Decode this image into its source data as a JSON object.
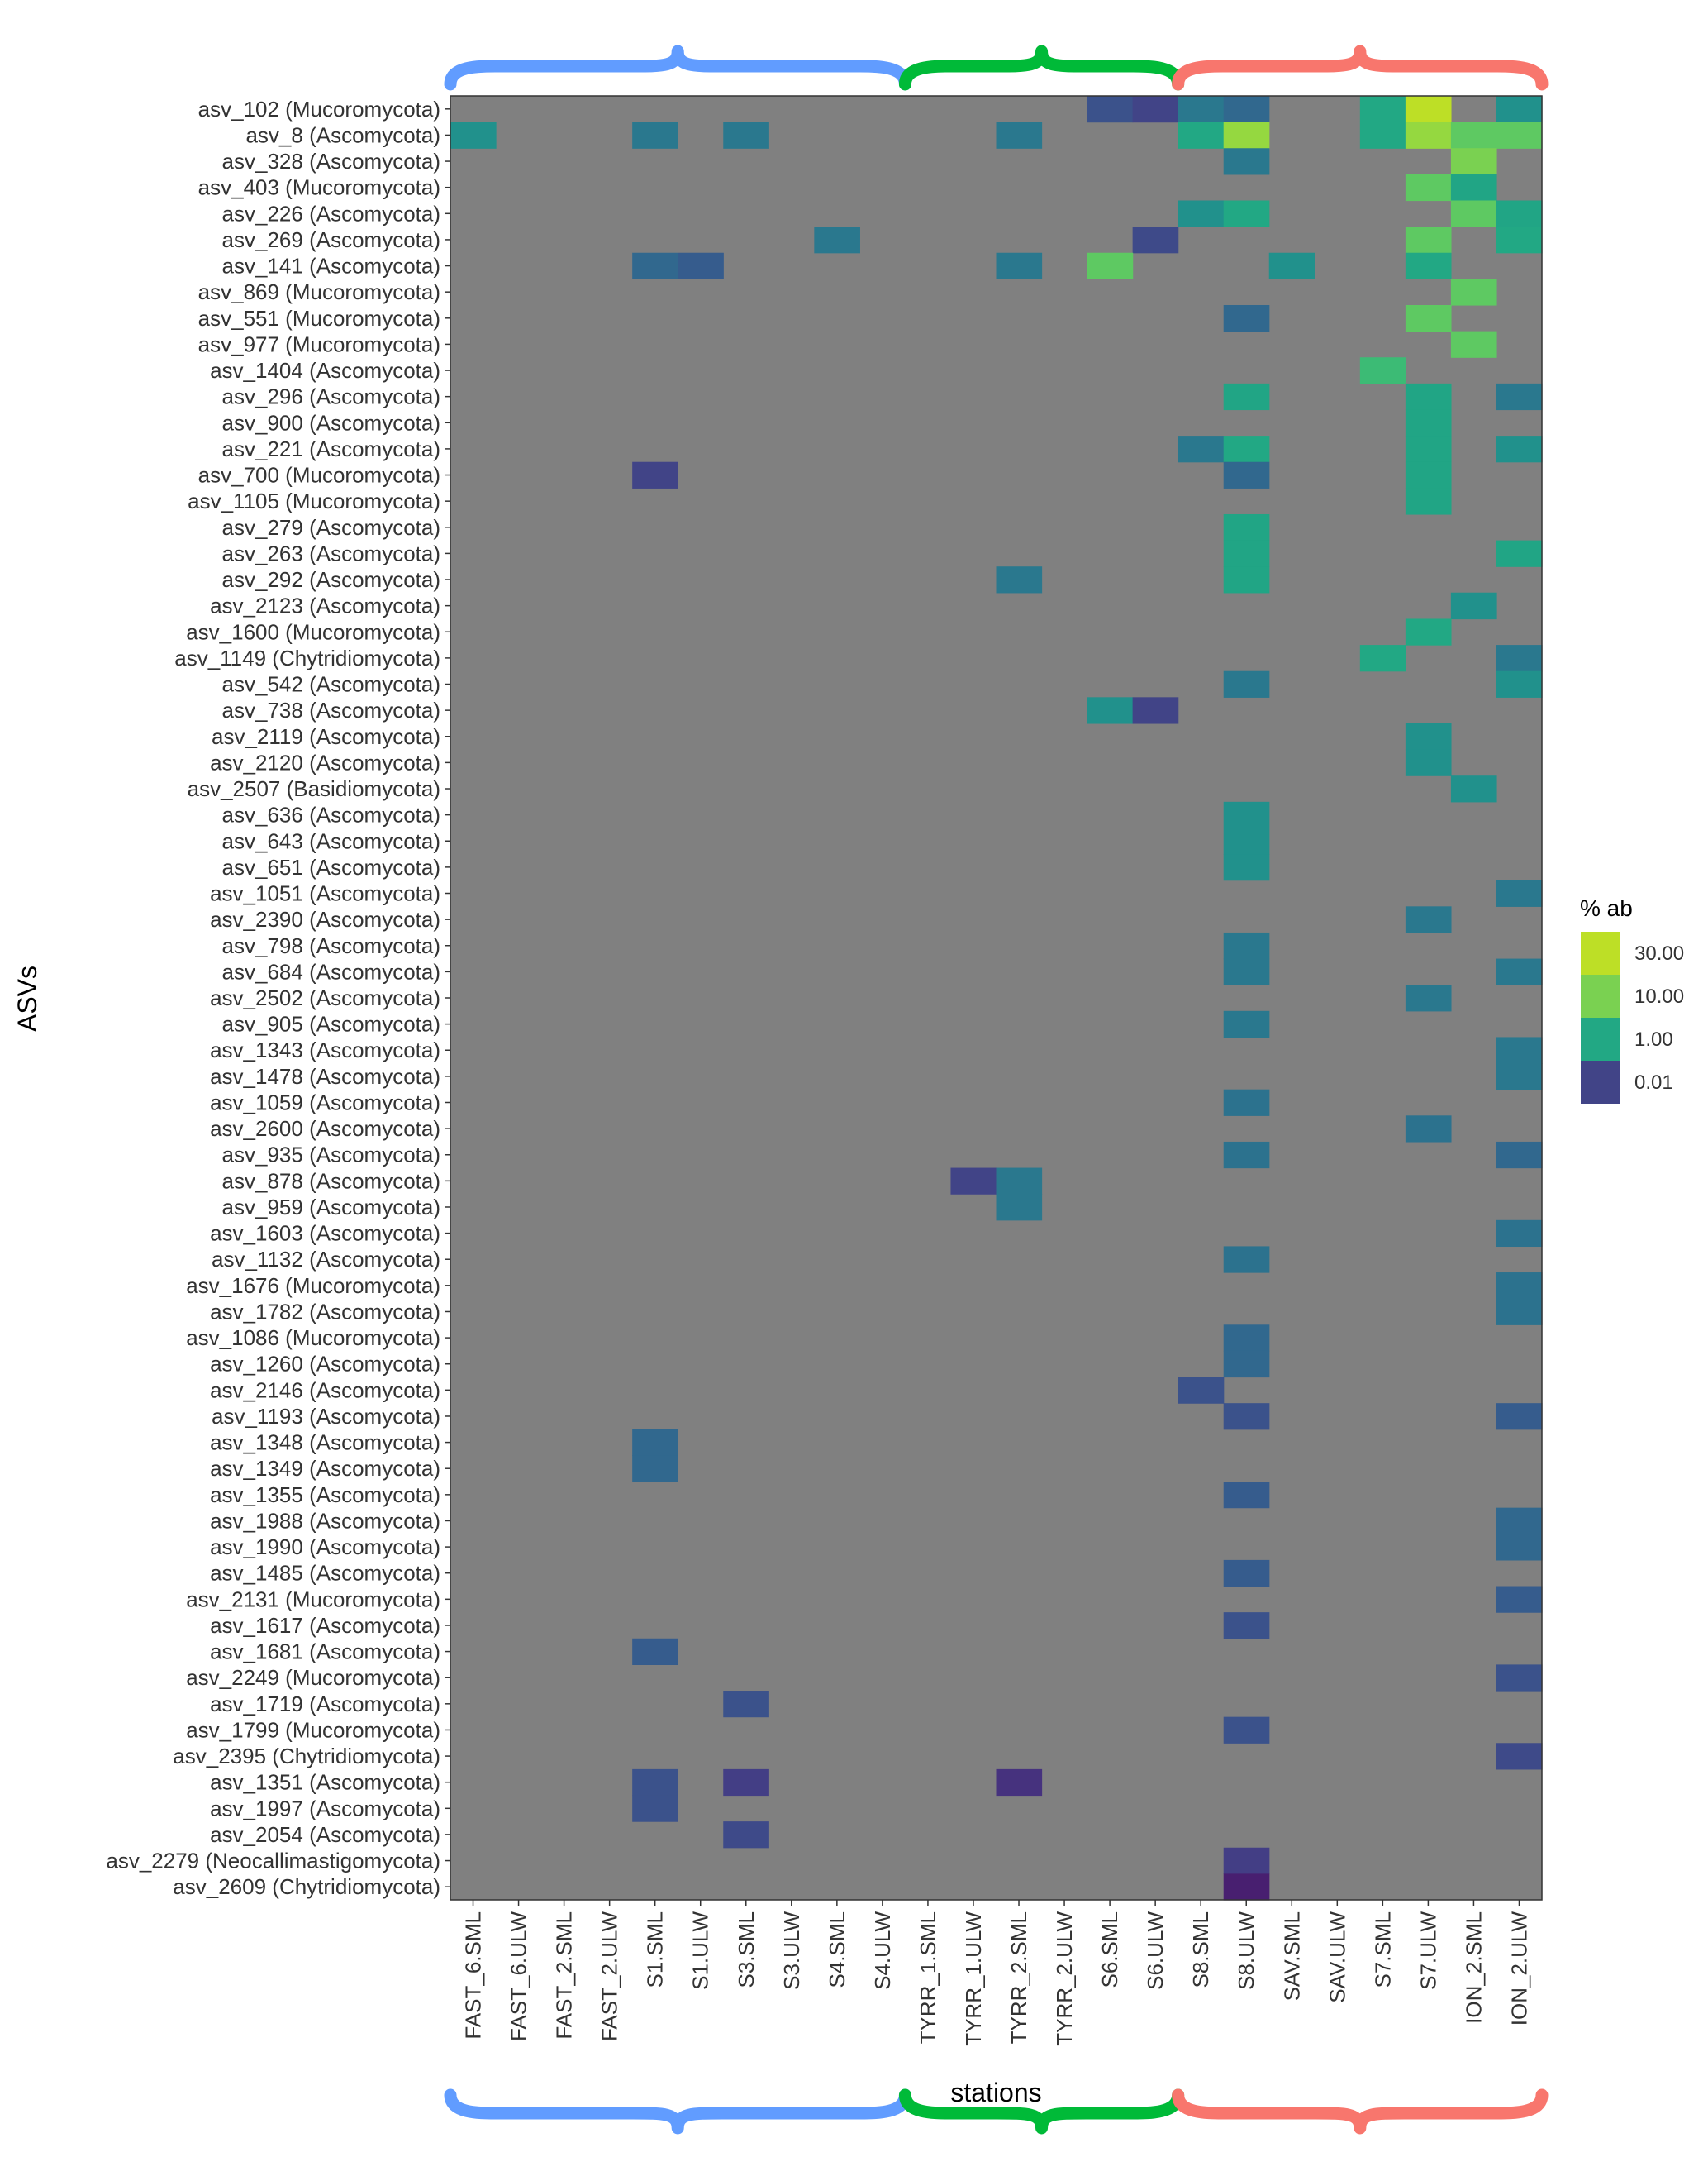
{
  "chart_data": {
    "type": "heatmap",
    "title": "",
    "xlabel": "stations",
    "ylabel": "ASVs",
    "x_categories": [
      "FAST_6.SML",
      "FAST_6.ULW",
      "FAST_2.SML",
      "FAST_2.ULW",
      "S1.SML",
      "S1.ULW",
      "S3.SML",
      "S3.ULW",
      "S4.SML",
      "S4.ULW",
      "TYRR_1.SML",
      "TYRR_1.ULW",
      "TYRR_2.SML",
      "TYRR_2.ULW",
      "S6.SML",
      "S6.ULW",
      "S8.SML",
      "S8.ULW",
      "SAV.SML",
      "SAV.ULW",
      "S7.SML",
      "S7.ULW",
      "ION_2.SML",
      "ION_2.ULW"
    ],
    "y_categories": [
      "asv_102 (Mucoromycota)",
      "asv_8 (Ascomycota)",
      "asv_328 (Ascomycota)",
      "asv_403 (Mucoromycota)",
      "asv_226 (Ascomycota)",
      "asv_269 (Ascomycota)",
      "asv_141 (Ascomycota)",
      "asv_869 (Mucoromycota)",
      "asv_551 (Mucoromycota)",
      "asv_977 (Mucoromycota)",
      "asv_1404 (Ascomycota)",
      "asv_296 (Ascomycota)",
      "asv_900 (Ascomycota)",
      "asv_221 (Ascomycota)",
      "asv_700 (Mucoromycota)",
      "asv_1105 (Mucoromycota)",
      "asv_279 (Ascomycota)",
      "asv_263 (Ascomycota)",
      "asv_292 (Ascomycota)",
      "asv_2123 (Ascomycota)",
      "asv_1600 (Mucoromycota)",
      "asv_1149 (Chytridiomycota)",
      "asv_542 (Ascomycota)",
      "asv_738 (Ascomycota)",
      "asv_2119 (Ascomycota)",
      "asv_2120 (Ascomycota)",
      "asv_2507 (Basidiomycota)",
      "asv_636 (Ascomycota)",
      "asv_643 (Ascomycota)",
      "asv_651 (Ascomycota)",
      "asv_1051 (Ascomycota)",
      "asv_2390 (Ascomycota)",
      "asv_798 (Ascomycota)",
      "asv_684 (Ascomycota)",
      "asv_2502 (Ascomycota)",
      "asv_905 (Ascomycota)",
      "asv_1343 (Ascomycota)",
      "asv_1478 (Ascomycota)",
      "asv_1059 (Ascomycota)",
      "asv_2600 (Ascomycota)",
      "asv_935 (Ascomycota)",
      "asv_878 (Ascomycota)",
      "asv_959 (Ascomycota)",
      "asv_1603 (Ascomycota)",
      "asv_1132 (Ascomycota)",
      "asv_1676 (Mucoromycota)",
      "asv_1782 (Ascomycota)",
      "asv_1086 (Mucoromycota)",
      "asv_1260 (Ascomycota)",
      "asv_2146 (Ascomycota)",
      "asv_1193 (Ascomycota)",
      "asv_1348 (Ascomycota)",
      "asv_1349 (Ascomycota)",
      "asv_1355 (Ascomycota)",
      "asv_1988 (Ascomycota)",
      "asv_1990 (Ascomycota)",
      "asv_1485 (Ascomycota)",
      "asv_2131 (Mucoromycota)",
      "asv_1617 (Ascomycota)",
      "asv_1681 (Ascomycota)",
      "asv_2249 (Mucoromycota)",
      "asv_1719 (Ascomycota)",
      "asv_1799 (Mucoromycota)",
      "asv_2395 (Chytridiomycota)",
      "asv_1351 (Ascomycota)",
      "asv_1997 (Ascomycota)",
      "asv_2054 (Ascomycota)",
      "asv_2279 (Neocallimastigomycota)",
      "asv_2609 (Chytridiomycota)"
    ],
    "background_color": "#808080",
    "legend": {
      "title": "% ab",
      "position": "right",
      "labels": [
        "30.00",
        "10.00",
        "1.00",
        "0.01"
      ],
      "colors": [
        "#bddf26",
        "#7ad151",
        "#22a884",
        "#414487"
      ]
    },
    "brackets": {
      "top": [
        {
          "from": "FAST_6.SML",
          "to": "S4.ULW",
          "color": "#619cff"
        },
        {
          "from": "TYRR_1.SML",
          "to": "S6.ULW",
          "color": "#00ba38"
        },
        {
          "from": "S8.SML",
          "to": "ION_2.ULW",
          "color": "#f8766d"
        }
      ],
      "bottom": [
        {
          "from": "FAST_6.SML",
          "to": "S4.ULW",
          "color": "#619cff"
        },
        {
          "from": "TYRR_1.SML",
          "to": "S6.ULW",
          "color": "#00ba38"
        },
        {
          "from": "S8.SML",
          "to": "ION_2.ULW",
          "color": "#f8766d"
        }
      ]
    },
    "cells": [
      {
        "x": "S6.SML",
        "y": "asv_102 (Mucoromycota)",
        "value": 0.03,
        "color": "#3b528b"
      },
      {
        "x": "S6.ULW",
        "y": "asv_102 (Mucoromycota)",
        "value": 0.01,
        "color": "#414487"
      },
      {
        "x": "S8.SML",
        "y": "asv_102 (Mucoromycota)",
        "value": 0.5,
        "color": "#2a788e"
      },
      {
        "x": "S8.ULW",
        "y": "asv_102 (Mucoromycota)",
        "value": 0.1,
        "color": "#31688e"
      },
      {
        "x": "S7.SML",
        "y": "asv_102 (Mucoromycota)",
        "value": 1.5,
        "color": "#22a884"
      },
      {
        "x": "S7.ULW",
        "y": "asv_102 (Mucoromycota)",
        "value": 30,
        "color": "#bddf26"
      },
      {
        "x": "ION_2.ULW",
        "y": "asv_102 (Mucoromycota)",
        "value": 1,
        "color": "#21918c"
      },
      {
        "x": "FAST_6.SML",
        "y": "asv_8 (Ascomycota)",
        "value": 0.5,
        "color": "#21918c"
      },
      {
        "x": "S1.SML",
        "y": "asv_8 (Ascomycota)",
        "value": 0.2,
        "color": "#2a788e"
      },
      {
        "x": "S3.SML",
        "y": "asv_8 (Ascomycota)",
        "value": 0.3,
        "color": "#2a788e"
      },
      {
        "x": "TYRR_2.SML",
        "y": "asv_8 (Ascomycota)",
        "value": 0.2,
        "color": "#2a788e"
      },
      {
        "x": "S8.SML",
        "y": "asv_8 (Ascomycota)",
        "value": 1,
        "color": "#22a884"
      },
      {
        "x": "S8.ULW",
        "y": "asv_8 (Ascomycota)",
        "value": 20,
        "color": "#95d840"
      },
      {
        "x": "S7.SML",
        "y": "asv_8 (Ascomycota)",
        "value": 2,
        "color": "#22a884"
      },
      {
        "x": "S7.ULW",
        "y": "asv_8 (Ascomycota)",
        "value": 15,
        "color": "#95d840"
      },
      {
        "x": "ION_2.SML",
        "y": "asv_8 (Ascomycota)",
        "value": 5,
        "color": "#5ec962"
      },
      {
        "x": "ION_2.ULW",
        "y": "asv_8 (Ascomycota)",
        "value": 5,
        "color": "#5ec962"
      },
      {
        "x": "S8.ULW",
        "y": "asv_328 (Ascomycota)",
        "value": 0.1,
        "color": "#2a788e"
      },
      {
        "x": "ION_2.SML",
        "y": "asv_328 (Ascomycota)",
        "value": 10,
        "color": "#7ad151"
      },
      {
        "x": "S7.ULW",
        "y": "asv_403 (Mucoromycota)",
        "value": 5,
        "color": "#5ec962"
      },
      {
        "x": "ION_2.SML",
        "y": "asv_403 (Mucoromycota)",
        "value": 1,
        "color": "#21a585"
      },
      {
        "x": "S8.SML",
        "y": "asv_226 (Ascomycota)",
        "value": 0.5,
        "color": "#21918c"
      },
      {
        "x": "S8.ULW",
        "y": "asv_226 (Ascomycota)",
        "value": 1,
        "color": "#22a884"
      },
      {
        "x": "ION_2.SML",
        "y": "asv_226 (Ascomycota)",
        "value": 5,
        "color": "#5ec962"
      },
      {
        "x": "ION_2.ULW",
        "y": "asv_226 (Ascomycota)",
        "value": 1,
        "color": "#21a585"
      },
      {
        "x": "S4.SML",
        "y": "asv_269 (Ascomycota)",
        "value": 0.3,
        "color": "#2a788e"
      },
      {
        "x": "S6.ULW",
        "y": "asv_269 (Ascomycota)",
        "value": 0.02,
        "color": "#3e4a89"
      },
      {
        "x": "S7.ULW",
        "y": "asv_269 (Ascomycota)",
        "value": 5,
        "color": "#5ec962"
      },
      {
        "x": "ION_2.ULW",
        "y": "asv_269 (Ascomycota)",
        "value": 1,
        "color": "#22a884"
      },
      {
        "x": "S1.SML",
        "y": "asv_141 (Ascomycota)",
        "value": 0.1,
        "color": "#31688e"
      },
      {
        "x": "S1.ULW",
        "y": "asv_141 (Ascomycota)",
        "value": 0.05,
        "color": "#365c8d"
      },
      {
        "x": "TYRR_2.SML",
        "y": "asv_141 (Ascomycota)",
        "value": 0.2,
        "color": "#2a788e"
      },
      {
        "x": "S6.SML",
        "y": "asv_141 (Ascomycota)",
        "value": 5,
        "color": "#5ec962"
      },
      {
        "x": "SAV.SML",
        "y": "asv_141 (Ascomycota)",
        "value": 0.5,
        "color": "#21918c"
      },
      {
        "x": "S7.ULW",
        "y": "asv_141 (Ascomycota)",
        "value": 1,
        "color": "#22a884"
      },
      {
        "x": "ION_2.SML",
        "y": "asv_869 (Mucoromycota)",
        "value": 5,
        "color": "#5ec962"
      },
      {
        "x": "S8.ULW",
        "y": "asv_551 (Mucoromycota)",
        "value": 0.1,
        "color": "#31688e"
      },
      {
        "x": "S7.ULW",
        "y": "asv_551 (Mucoromycota)",
        "value": 5,
        "color": "#5ec962"
      },
      {
        "x": "ION_2.SML",
        "y": "asv_977 (Mucoromycota)",
        "value": 5,
        "color": "#5ec962"
      },
      {
        "x": "S7.SML",
        "y": "asv_1404 (Ascomycota)",
        "value": 2,
        "color": "#3cbb75"
      },
      {
        "x": "S8.ULW",
        "y": "asv_296 (Ascomycota)",
        "value": 1,
        "color": "#21a585"
      },
      {
        "x": "S7.ULW",
        "y": "asv_296 (Ascomycota)",
        "value": 1,
        "color": "#21a585"
      },
      {
        "x": "ION_2.ULW",
        "y": "asv_296 (Ascomycota)",
        "value": 0.2,
        "color": "#2a788e"
      },
      {
        "x": "S7.ULW",
        "y": "asv_900 (Ascomycota)",
        "value": 1,
        "color": "#21a585"
      },
      {
        "x": "S8.SML",
        "y": "asv_221 (Ascomycota)",
        "value": 0.2,
        "color": "#2a788e"
      },
      {
        "x": "S8.ULW",
        "y": "asv_221 (Ascomycota)",
        "value": 1,
        "color": "#22a884"
      },
      {
        "x": "S7.ULW",
        "y": "asv_221 (Ascomycota)",
        "value": 1,
        "color": "#21a585"
      },
      {
        "x": "ION_2.ULW",
        "y": "asv_221 (Ascomycota)",
        "value": 0.5,
        "color": "#21918c"
      },
      {
        "x": "S1.SML",
        "y": "asv_700 (Mucoromycota)",
        "value": 0.01,
        "color": "#414487"
      },
      {
        "x": "S8.ULW",
        "y": "asv_700 (Mucoromycota)",
        "value": 0.1,
        "color": "#31688e"
      },
      {
        "x": "S7.ULW",
        "y": "asv_700 (Mucoromycota)",
        "value": 1,
        "color": "#21a585"
      },
      {
        "x": "S7.ULW",
        "y": "asv_1105 (Mucoromycota)",
        "value": 1,
        "color": "#21a585"
      },
      {
        "x": "S8.ULW",
        "y": "asv_279 (Ascomycota)",
        "value": 1,
        "color": "#21a585"
      },
      {
        "x": "S8.ULW",
        "y": "asv_263 (Ascomycota)",
        "value": 1,
        "color": "#21a585"
      },
      {
        "x": "ION_2.ULW",
        "y": "asv_263 (Ascomycota)",
        "value": 1,
        "color": "#21a585"
      },
      {
        "x": "TYRR_2.SML",
        "y": "asv_292 (Ascomycota)",
        "value": 0.2,
        "color": "#2a788e"
      },
      {
        "x": "S8.ULW",
        "y": "asv_292 (Ascomycota)",
        "value": 1,
        "color": "#21a585"
      },
      {
        "x": "ION_2.SML",
        "y": "asv_2123 (Ascomycota)",
        "value": 0.5,
        "color": "#21918c"
      },
      {
        "x": "ION_2.SML",
        "y": "asv_2123 (Ascomycota)",
        "value": 0.5,
        "color": "#21918c"
      },
      {
        "x": "S7.ULW",
        "y": "asv_1600 (Mucoromycota)",
        "value": 1,
        "color": "#22a884"
      },
      {
        "x": "S7.SML",
        "y": "asv_1149 (Chytridiomycota)",
        "value": 1,
        "color": "#22a884"
      },
      {
        "x": "ION_2.ULW",
        "y": "asv_1149 (Chytridiomycota)",
        "value": 0.2,
        "color": "#2a788e"
      },
      {
        "x": "S8.ULW",
        "y": "asv_542 (Ascomycota)",
        "value": 0.2,
        "color": "#2a788e"
      },
      {
        "x": "ION_2.ULW",
        "y": "asv_542 (Ascomycota)",
        "value": 0.5,
        "color": "#21918c"
      },
      {
        "x": "S6.SML",
        "y": "asv_738 (Ascomycota)",
        "value": 0.5,
        "color": "#21918c"
      },
      {
        "x": "S6.ULW",
        "y": "asv_738 (Ascomycota)",
        "value": 0.01,
        "color": "#414487"
      },
      {
        "x": "S7.ULW",
        "y": "asv_2119 (Ascomycota)",
        "value": 0.5,
        "color": "#21918c"
      },
      {
        "x": "S7.ULW",
        "y": "asv_2120 (Ascomycota)",
        "value": 0.5,
        "color": "#21918c"
      },
      {
        "x": "ION_2.SML",
        "y": "asv_2507 (Basidiomycota)",
        "value": 0.5,
        "color": "#21918c"
      },
      {
        "x": "S8.ULW",
        "y": "asv_636 (Ascomycota)",
        "value": 0.5,
        "color": "#21918c"
      },
      {
        "x": "S8.ULW",
        "y": "asv_643 (Ascomycota)",
        "value": 0.5,
        "color": "#21918c"
      },
      {
        "x": "S8.ULW",
        "y": "asv_651 (Ascomycota)",
        "value": 0.5,
        "color": "#21918c"
      },
      {
        "x": "ION_2.ULW",
        "y": "asv_1051 (Ascomycota)",
        "value": 0.3,
        "color": "#2a788e"
      },
      {
        "x": "S7.ULW",
        "y": "asv_2390 (Ascomycota)",
        "value": 0.2,
        "color": "#2a788e"
      },
      {
        "x": "S8.ULW",
        "y": "asv_798 (Ascomycota)",
        "value": 0.2,
        "color": "#2a788e"
      },
      {
        "x": "S8.ULW",
        "y": "asv_684 (Ascomycota)",
        "value": 0.2,
        "color": "#2a788e"
      },
      {
        "x": "ION_2.ULW",
        "y": "asv_684 (Ascomycota)",
        "value": 0.2,
        "color": "#2a788e"
      },
      {
        "x": "S7.ULW",
        "y": "asv_2502 (Ascomycota)",
        "value": 0.2,
        "color": "#2a788e"
      },
      {
        "x": "S8.ULW",
        "y": "asv_905 (Ascomycota)",
        "value": 0.2,
        "color": "#2a788e"
      },
      {
        "x": "ION_2.ULW",
        "y": "asv_1343 (Ascomycota)",
        "value": 0.2,
        "color": "#2a788e"
      },
      {
        "x": "ION_2.ULW",
        "y": "asv_1478 (Ascomycota)",
        "value": 0.2,
        "color": "#2a788e"
      },
      {
        "x": "S8.ULW",
        "y": "asv_1059 (Ascomycota)",
        "value": 0.1,
        "color": "#2c728e"
      },
      {
        "x": "S7.ULW",
        "y": "asv_2600 (Ascomycota)",
        "value": 0.1,
        "color": "#2c728e"
      },
      {
        "x": "S8.ULW",
        "y": "asv_935 (Ascomycota)",
        "value": 0.1,
        "color": "#2c728e"
      },
      {
        "x": "ION_2.ULW",
        "y": "asv_935 (Ascomycota)",
        "value": 0.05,
        "color": "#31688e"
      },
      {
        "x": "TYRR_1.ULW",
        "y": "asv_878 (Ascomycota)",
        "value": 0.01,
        "color": "#414487"
      },
      {
        "x": "TYRR_2.SML",
        "y": "asv_878 (Ascomycota)",
        "value": 0.2,
        "color": "#2a788e"
      },
      {
        "x": "TYRR_2.SML",
        "y": "asv_959 (Ascomycota)",
        "value": 0.2,
        "color": "#2a788e"
      },
      {
        "x": "ION_2.ULW",
        "y": "asv_1603 (Ascomycota)",
        "value": 0.1,
        "color": "#2c728e"
      },
      {
        "x": "S8.ULW",
        "y": "asv_1132 (Ascomycota)",
        "value": 0.1,
        "color": "#2c728e"
      },
      {
        "x": "ION_2.ULW",
        "y": "asv_1676 (Mucoromycota)",
        "value": 0.1,
        "color": "#2c728e"
      },
      {
        "x": "ION_2.ULW",
        "y": "asv_1782 (Ascomycota)",
        "value": 0.1,
        "color": "#2c728e"
      },
      {
        "x": "S8.ULW",
        "y": "asv_1086 (Mucoromycota)",
        "value": 0.05,
        "color": "#31688e"
      },
      {
        "x": "S8.ULW",
        "y": "asv_1260 (Ascomycota)",
        "value": 0.05,
        "color": "#31688e"
      },
      {
        "x": "S8.SML",
        "y": "asv_2146 (Ascomycota)",
        "value": 0.03,
        "color": "#3b528b"
      },
      {
        "x": "S8.ULW",
        "y": "asv_1193 (Ascomycota)",
        "value": 0.03,
        "color": "#3b528b"
      },
      {
        "x": "ION_2.ULW",
        "y": "asv_1193 (Ascomycota)",
        "value": 0.05,
        "color": "#365c8d"
      },
      {
        "x": "S1.SML",
        "y": "asv_1348 (Ascomycota)",
        "value": 0.05,
        "color": "#31688e"
      },
      {
        "x": "S1.SML",
        "y": "asv_1349 (Ascomycota)",
        "value": 0.05,
        "color": "#31688e"
      },
      {
        "x": "S8.ULW",
        "y": "asv_1355 (Ascomycota)",
        "value": 0.05,
        "color": "#365c8d"
      },
      {
        "x": "ION_2.ULW",
        "y": "asv_1988 (Ascomycota)",
        "value": 0.05,
        "color": "#31688e"
      },
      {
        "x": "ION_2.ULW",
        "y": "asv_1990 (Ascomycota)",
        "value": 0.05,
        "color": "#31688e"
      },
      {
        "x": "S8.ULW",
        "y": "asv_1485 (Ascomycota)",
        "value": 0.05,
        "color": "#365c8d"
      },
      {
        "x": "ION_2.ULW",
        "y": "asv_2131 (Mucoromycota)",
        "value": 0.05,
        "color": "#365c8d"
      },
      {
        "x": "S8.ULW",
        "y": "asv_1617 (Ascomycota)",
        "value": 0.03,
        "color": "#3b528b"
      },
      {
        "x": "S1.SML",
        "y": "asv_1681 (Ascomycota)",
        "value": 0.03,
        "color": "#365c8d"
      },
      {
        "x": "ION_2.ULW",
        "y": "asv_2249 (Mucoromycota)",
        "value": 0.03,
        "color": "#3b528b"
      },
      {
        "x": "S3.SML",
        "y": "asv_1719 (Ascomycota)",
        "value": 0.03,
        "color": "#3b528b"
      },
      {
        "x": "S8.ULW",
        "y": "asv_1799 (Mucoromycota)",
        "value": 0.03,
        "color": "#3b528b"
      },
      {
        "x": "ION_2.ULW",
        "y": "asv_2395 (Chytridiomycota)",
        "value": 0.02,
        "color": "#3e4a89"
      },
      {
        "x": "S1.SML",
        "y": "asv_1351 (Ascomycota)",
        "value": 0.03,
        "color": "#3b528b"
      },
      {
        "x": "S3.SML",
        "y": "asv_1351 (Ascomycota)",
        "value": 0.01,
        "color": "#433e85"
      },
      {
        "x": "TYRR_2.SML",
        "y": "asv_1351 (Ascomycota)",
        "value": 0.005,
        "color": "#46327e"
      },
      {
        "x": "S1.SML",
        "y": "asv_1997 (Ascomycota)",
        "value": 0.03,
        "color": "#3b528b"
      },
      {
        "x": "S3.SML",
        "y": "asv_2054 (Ascomycota)",
        "value": 0.02,
        "color": "#3e4a89"
      },
      {
        "x": "S8.ULW",
        "y": "asv_2279 (Neocallimastigomycota)",
        "value": 0.01,
        "color": "#433e85"
      },
      {
        "x": "S8.ULW",
        "y": "asv_2609 (Chytridiomycota)",
        "value": 0.002,
        "color": "#481f70"
      }
    ]
  }
}
